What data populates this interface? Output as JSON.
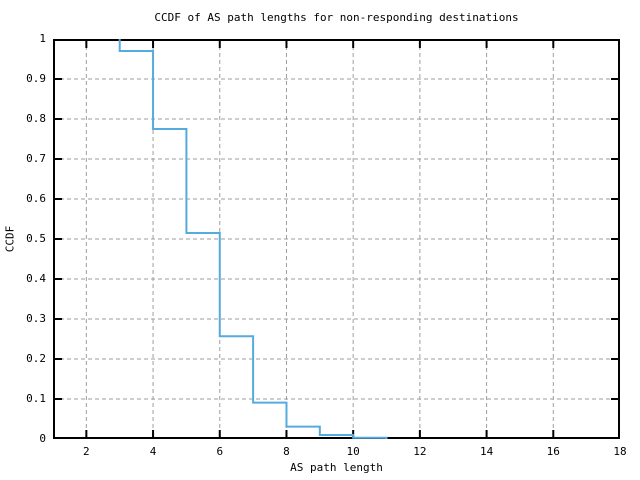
{
  "page": {
    "background": "#ffffff"
  },
  "chart_data": {
    "type": "line",
    "chart_style": "ccdf-step",
    "title": "CCDF of AS path lengths for non-responding destinations",
    "xlabel": "AS path length",
    "ylabel": "CCDF",
    "xlim": [
      1,
      18
    ],
    "ylim": [
      0,
      1
    ],
    "xticks": [
      2,
      4,
      6,
      8,
      10,
      12,
      14,
      16,
      18
    ],
    "yticks": [
      0,
      0.1,
      0.2,
      0.3,
      0.4,
      0.5,
      0.6,
      0.7,
      0.8,
      0.9,
      1
    ],
    "grid": "dashed",
    "legend": "none",
    "colors": {
      "line": "#56aadd",
      "grid": "#9e9e9e",
      "axis": "#000000",
      "text": "#000000",
      "background": "#ffffff"
    },
    "series": [
      {
        "step_start": [
          3,
          1.0
        ],
        "plateaus": [
          {
            "x1": 3,
            "x2": 4,
            "y": 0.97
          },
          {
            "x1": 4,
            "x2": 5,
            "y": 0.775
          },
          {
            "x1": 5,
            "x2": 6,
            "y": 0.515
          },
          {
            "x1": 6,
            "x2": 7,
            "y": 0.257
          },
          {
            "x1": 7,
            "x2": 8,
            "y": 0.091
          },
          {
            "x1": 8,
            "x2": 9,
            "y": 0.031
          },
          {
            "x1": 9,
            "x2": 10,
            "y": 0.01
          },
          {
            "x1": 10,
            "x2": 11,
            "y": 0.003
          }
        ],
        "step_end": [
          11,
          0.0
        ]
      }
    ]
  }
}
